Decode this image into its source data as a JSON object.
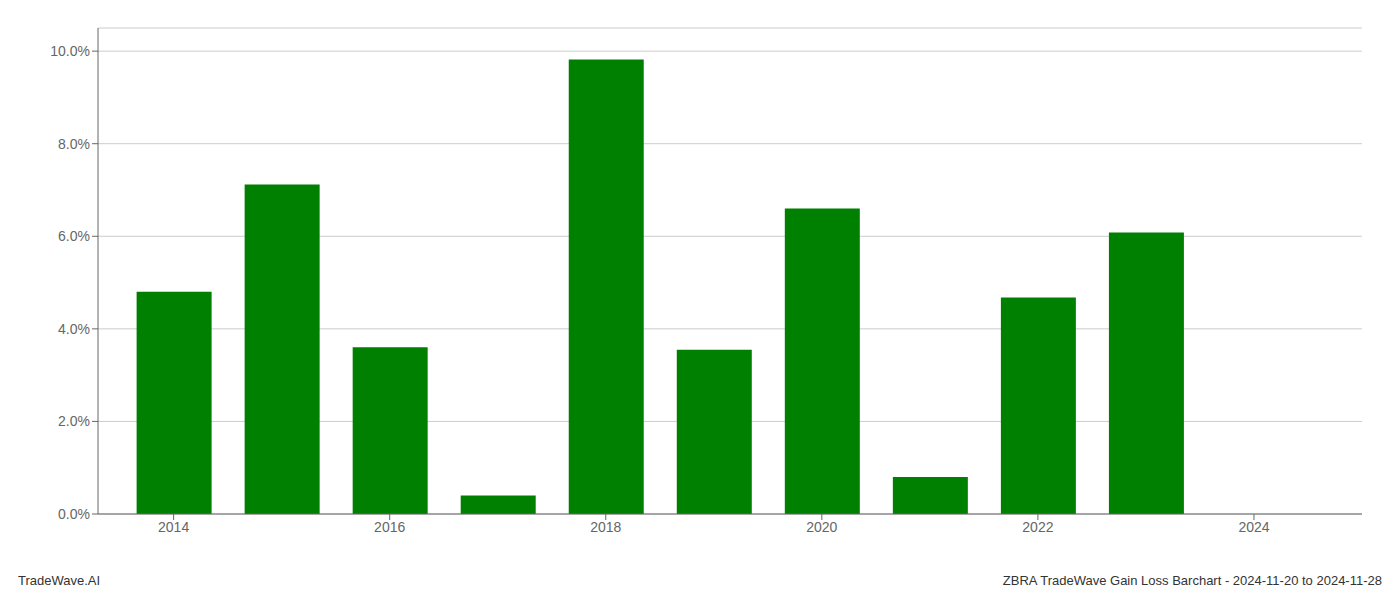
{
  "chart_data": {
    "type": "bar",
    "x": [
      2014,
      2015,
      2016,
      2017,
      2018,
      2019,
      2020,
      2021,
      2022,
      2023,
      2024
    ],
    "values": [
      0.048,
      0.0712,
      0.036,
      0.004,
      0.0982,
      0.0355,
      0.066,
      0.008,
      0.0468,
      0.0608,
      0.0
    ],
    "color": "#008000",
    "xlim": [
      2013.3,
      2025.0
    ],
    "xticks": [
      2014,
      2016,
      2018,
      2020,
      2022,
      2024
    ],
    "ylim": [
      0,
      0.105
    ],
    "yticks": [
      {
        "value": 0.0,
        "label": "0.0%"
      },
      {
        "value": 0.02,
        "label": "2.0%"
      },
      {
        "value": 0.04,
        "label": "4.0%"
      },
      {
        "value": 0.06,
        "label": "6.0%"
      },
      {
        "value": 0.08,
        "label": "8.0%"
      },
      {
        "value": 0.1,
        "label": "10.0%"
      }
    ],
    "grid": true,
    "annotations": [
      "TradeWave.AI",
      "ZBRA TradeWave Gain Loss Barchart - 2024-11-20 to 2024-11-28"
    ]
  }
}
